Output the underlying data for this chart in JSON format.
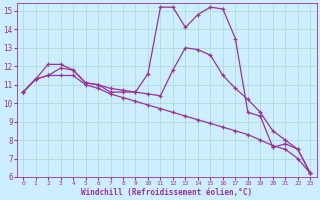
{
  "xlabel": "Windchill (Refroidissement éolien,°C)",
  "bg_color": "#cceeff",
  "grid_color": "#b0ddd0",
  "line_color": "#993399",
  "xlim": [
    -0.5,
    23.5
  ],
  "ylim": [
    6,
    15.4
  ],
  "xticks": [
    0,
    1,
    2,
    3,
    4,
    5,
    6,
    7,
    8,
    9,
    10,
    11,
    12,
    13,
    14,
    15,
    16,
    17,
    18,
    19,
    20,
    21,
    22,
    23
  ],
  "yticks": [
    6,
    7,
    8,
    9,
    10,
    11,
    12,
    13,
    14,
    15
  ],
  "line1_x": [
    0,
    1,
    2,
    3,
    4,
    5,
    6,
    7,
    8,
    9,
    10,
    11,
    12,
    13,
    14,
    15,
    16,
    17,
    18,
    19,
    20,
    21,
    22,
    23
  ],
  "line1_y": [
    10.6,
    11.3,
    12.1,
    12.1,
    11.8,
    11.1,
    11.0,
    10.6,
    10.6,
    10.6,
    11.6,
    15.2,
    15.2,
    14.1,
    14.8,
    15.2,
    15.1,
    13.5,
    9.5,
    9.3,
    7.6,
    7.8,
    7.5,
    6.2
  ],
  "line2_x": [
    0,
    1,
    2,
    3,
    4,
    5,
    6,
    7,
    8,
    9,
    10,
    11,
    12,
    13,
    14,
    15,
    16,
    17,
    18,
    19,
    20,
    21,
    22,
    23
  ],
  "line2_y": [
    10.6,
    11.3,
    11.5,
    11.9,
    11.8,
    11.1,
    11.0,
    10.8,
    10.7,
    10.6,
    10.5,
    10.4,
    11.8,
    13.0,
    12.9,
    12.6,
    11.5,
    10.8,
    10.2,
    9.5,
    8.5,
    8.0,
    7.5,
    6.2
  ],
  "line3_x": [
    0,
    1,
    2,
    3,
    4,
    5,
    6,
    7,
    8,
    9,
    10,
    11,
    12,
    13,
    14,
    15,
    16,
    17,
    18,
    19,
    20,
    21,
    22,
    23
  ],
  "line3_y": [
    10.6,
    11.3,
    11.5,
    11.5,
    11.5,
    11.0,
    10.8,
    10.5,
    10.3,
    10.1,
    9.9,
    9.7,
    9.5,
    9.3,
    9.1,
    8.9,
    8.7,
    8.5,
    8.3,
    8.0,
    7.7,
    7.5,
    7.0,
    6.2
  ]
}
